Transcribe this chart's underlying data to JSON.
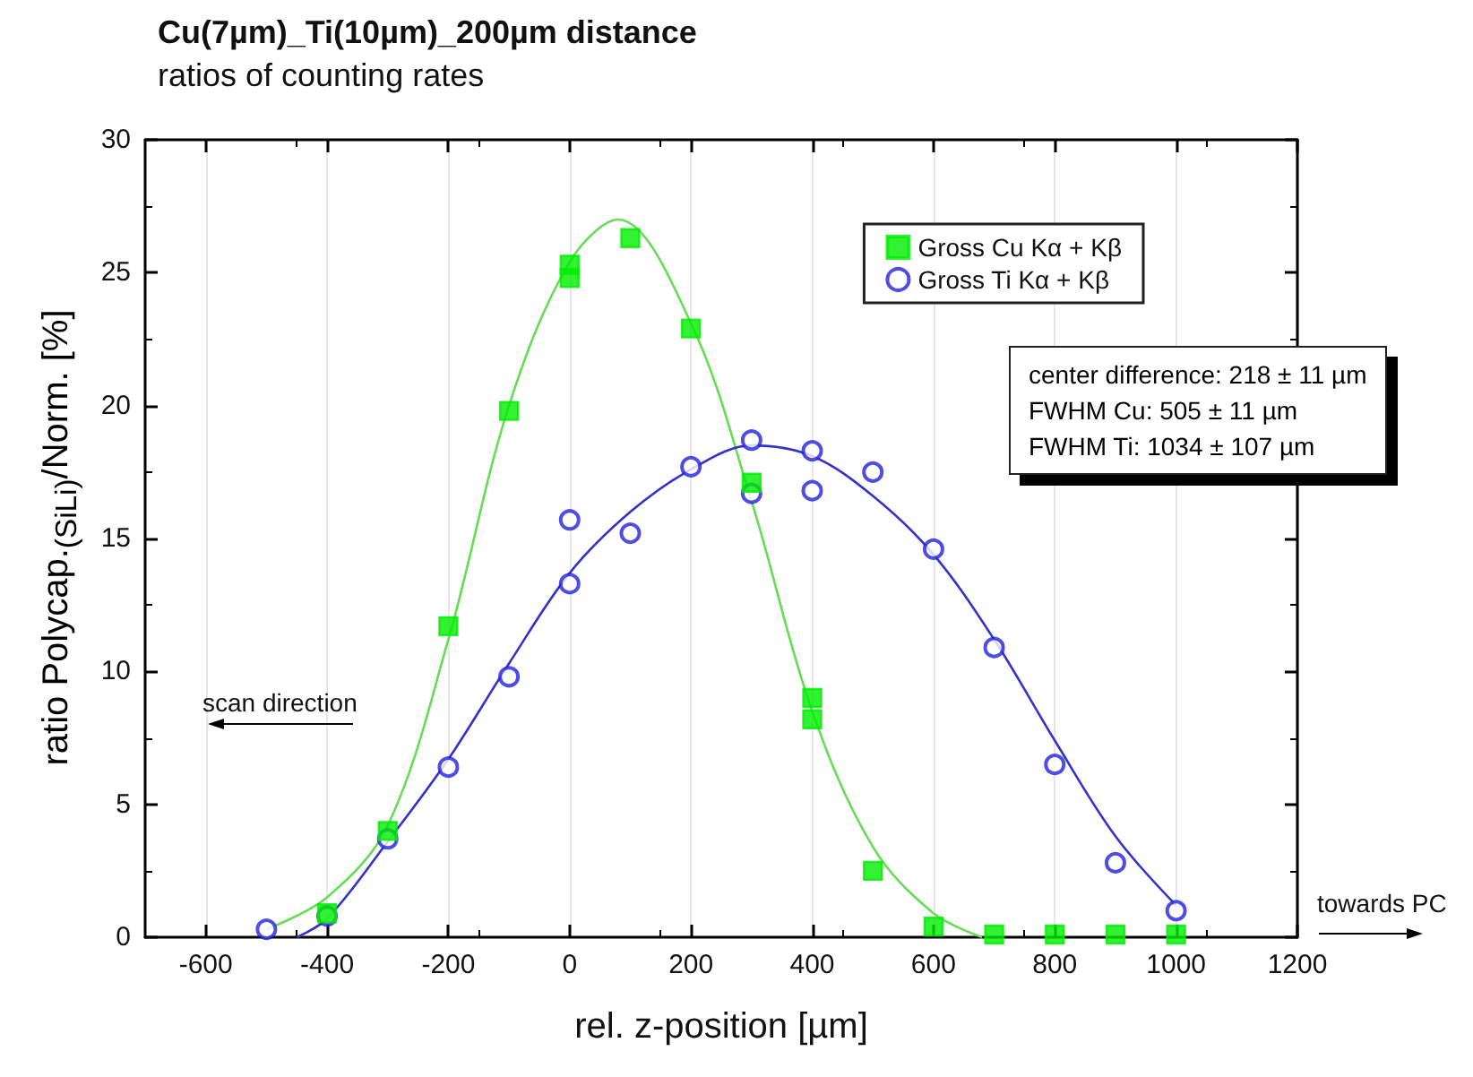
{
  "chart_data": {
    "type": "scatter",
    "title": "Cu(7µm)_Ti(10µm)_200µm distance",
    "subtitle": "ratios of counting rates",
    "xlabel": "rel. z-position [µm]",
    "ylabel": "ratio Polycap.$_{(SiLi)}$/Norm. [%]",
    "xlim": [
      -700,
      1200
    ],
    "xticks": [
      -600,
      -400,
      -200,
      0,
      200,
      400,
      600,
      800,
      1000,
      1200
    ],
    "ylim": [
      0,
      30
    ],
    "yticks": [
      0,
      5,
      10,
      15,
      20,
      25,
      30
    ],
    "grid": "x",
    "legend": "top right",
    "series": [
      {
        "name": "Gross Cu Kα + Kβ",
        "marker": "square",
        "color": "#00ee00",
        "x": [
          -400,
          -300,
          -200,
          -100,
          0,
          0,
          100,
          200,
          300,
          400,
          400,
          500,
          600,
          700,
          800,
          900,
          1000
        ],
        "values": [
          0.9,
          4.0,
          11.7,
          19.8,
          25.3,
          24.8,
          26.3,
          22.9,
          17.1,
          9.0,
          8.2,
          2.5,
          0.4,
          0.1,
          0.1,
          0.1,
          0.1
        ]
      },
      {
        "name": "Gross Ti Kα + Kβ",
        "marker": "circle",
        "color": "#2222dd",
        "x": [
          -500,
          -400,
          -300,
          -200,
          -100,
          0,
          0,
          100,
          200,
          300,
          300,
          400,
          400,
          500,
          600,
          700,
          800,
          900,
          1000
        ],
        "values": [
          0.3,
          0.8,
          3.7,
          6.4,
          9.8,
          15.7,
          13.3,
          15.2,
          17.7,
          18.7,
          16.7,
          18.3,
          16.8,
          17.5,
          14.6,
          10.9,
          6.5,
          2.8,
          1.0
        ]
      },
      {
        "type": "line",
        "marker": "none",
        "color": "#66dd55",
        "x": [
          -500,
          -400,
          -300,
          -200,
          -100,
          0,
          80,
          200,
          300,
          400,
          500,
          600,
          680
        ],
        "values": [
          0.3,
          1.5,
          4.2,
          11.2,
          20.0,
          25.4,
          27.0,
          23.1,
          16.4,
          8.5,
          3.4,
          0.9,
          0
        ]
      },
      {
        "type": "line",
        "marker": "none",
        "color": "#3333cc",
        "x": [
          -450,
          -400,
          -300,
          -200,
          -100,
          0,
          100,
          200,
          300,
          400,
          500,
          600,
          700,
          800,
          900,
          1000
        ],
        "values": [
          0,
          0.7,
          3.6,
          6.7,
          10.3,
          13.7,
          16.0,
          17.6,
          18.5,
          18.1,
          16.6,
          14.4,
          11.2,
          7.4,
          3.8,
          1.2
        ]
      }
    ],
    "annotations": [
      "scan direction",
      "towards PC",
      "center difference: 218 ± 11 µm",
      "FWHM Cu: 505 ± 11 µm",
      "FWHM Ti: 1034 ± 107 µm"
    ]
  }
}
